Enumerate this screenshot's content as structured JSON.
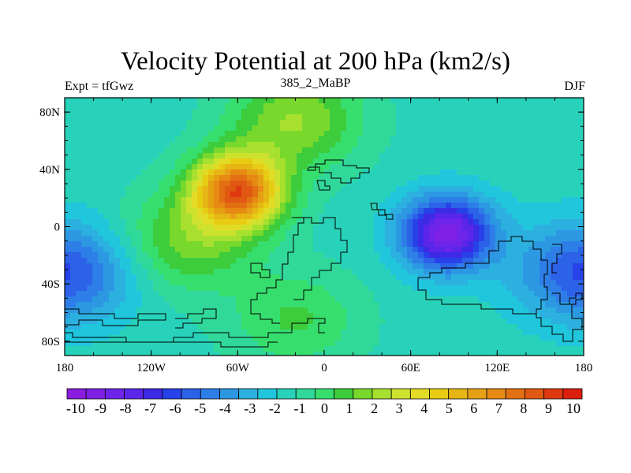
{
  "figure": {
    "title": "Velocity Potential at 200 hPa (km2/s)",
    "left_string": "Expt = tfGwz",
    "center_string": "385_2_MaBP",
    "right_string": "DJF"
  },
  "axes": {
    "lon_ticks": [
      {
        "value": -180,
        "label": "180"
      },
      {
        "value": -120,
        "label": "120W"
      },
      {
        "value": -60,
        "label": "60W"
      },
      {
        "value": 0,
        "label": "0"
      },
      {
        "value": 60,
        "label": "60E"
      },
      {
        "value": 120,
        "label": "120E"
      },
      {
        "value": 180,
        "label": "180"
      }
    ],
    "lat_ticks": [
      {
        "value": 80,
        "label": "80N"
      },
      {
        "value": 40,
        "label": "40N"
      },
      {
        "value": 0,
        "label": "0"
      },
      {
        "value": -40,
        "label": "40S"
      },
      {
        "value": -80,
        "label": "80S"
      }
    ],
    "lon_range": [
      -180,
      180
    ],
    "lat_range": [
      -90,
      90
    ]
  },
  "colorbar": {
    "labels": [
      "-10",
      "-9",
      "-8",
      "-7",
      "-6",
      "-5",
      "-4",
      "-3",
      "-2",
      "-1",
      "0",
      "1",
      "2",
      "3",
      "4",
      "5",
      "6",
      "7",
      "8",
      "9",
      "10"
    ],
    "colors": [
      "#8a1ce0",
      "#7e20e6",
      "#6f24ea",
      "#5c26ea",
      "#3d2ae6",
      "#2742e8",
      "#2c62e8",
      "#2e7ee8",
      "#2c98e2",
      "#2cb0e0",
      "#20c6dc",
      "#28d2ba",
      "#30d89a",
      "#36de6e",
      "#3ccc3c",
      "#78d82c",
      "#a8e030",
      "#cde22e",
      "#e2dc26",
      "#e8cc14",
      "#e6b614",
      "#e6a014",
      "#e68a14",
      "#e27012",
      "#e05812",
      "#e03810",
      "#dc1e0e"
    ]
  },
  "chart_data": {
    "type": "heatmap",
    "title": "Velocity Potential at 200 hPa (km2/s)",
    "units": "km2/s",
    "variable": "velocity potential",
    "level_hPa": 200,
    "season": "DJF",
    "experiment": "tfGwz",
    "case": "385_2_MaBP",
    "levels": [
      -10,
      -9,
      -8,
      -7,
      -6,
      -5,
      -4,
      -3,
      -2,
      -1,
      0,
      1,
      2,
      3,
      4,
      5,
      6,
      7,
      8,
      9,
      10
    ],
    "background_value": -1.5,
    "features": [
      {
        "name": "North America / N. Atlantic maximum",
        "lon": -60,
        "lat": 25,
        "amplitude": 9.8
      },
      {
        "name": "southwest extension of maximum",
        "lon": -95,
        "lat": -10,
        "amplitude": 3.0
      },
      {
        "name": "northern high latitude positive band",
        "lon": -20,
        "lat": 75,
        "amplitude": 3.5
      },
      {
        "name": "Indian Ocean minimum",
        "lon": 85,
        "lat": -5,
        "amplitude": -8.0
      },
      {
        "name": "South Pacific minimum (west edge)",
        "lon": -180,
        "lat": -32,
        "amplitude": -4.5
      },
      {
        "name": "South Pacific minimum (east edge)",
        "lon": 180,
        "lat": -32,
        "amplitude": -4.5
      },
      {
        "name": "southern ocean near-zero band",
        "lon": -20,
        "lat": -65,
        "amplitude": 2.0
      }
    ]
  }
}
